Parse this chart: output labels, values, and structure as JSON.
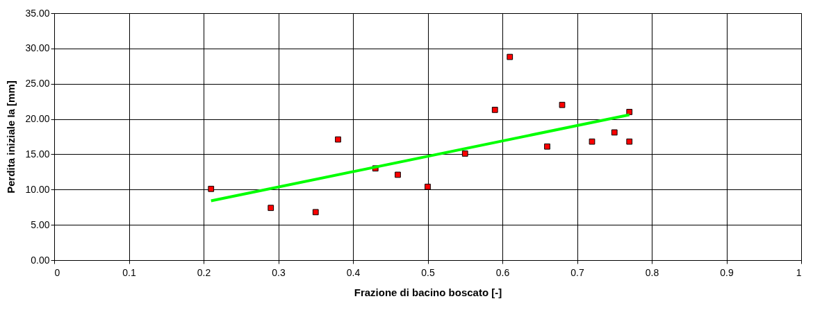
{
  "chart_data": {
    "type": "scatter",
    "xlabel": "Frazione di bacino boscato [-]",
    "ylabel": "Perdita iniziale Ia [mm]",
    "x": [
      0.21,
      0.29,
      0.35,
      0.38,
      0.43,
      0.46,
      0.5,
      0.55,
      0.59,
      0.61,
      0.66,
      0.68,
      0.72,
      0.75,
      0.77,
      0.77
    ],
    "series": [
      {
        "color": "#ff0000",
        "marker": "square",
        "values": [
          10.1,
          7.4,
          6.8,
          17.1,
          13.0,
          12.1,
          10.4,
          15.1,
          21.3,
          28.8,
          16.1,
          22.0,
          16.8,
          18.1,
          21.0,
          16.8
        ]
      },
      {
        "type": "line",
        "color": "#00ff00",
        "marker": "none",
        "x": [
          0.21,
          0.77
        ],
        "values": [
          8.4,
          20.6
        ]
      }
    ],
    "xlim": [
      0,
      1
    ],
    "xticks": [
      0,
      0.1,
      0.2,
      0.3,
      0.4,
      0.5,
      0.6,
      0.7,
      0.8,
      0.9,
      1
    ],
    "ylim": [
      0,
      35
    ],
    "yticks": [
      {
        "value": 0,
        "label": "0.00"
      },
      {
        "value": 5,
        "label": "5.00"
      },
      {
        "value": 10,
        "label": "10.00"
      },
      {
        "value": 15,
        "label": "15.00"
      },
      {
        "value": 20,
        "label": "20.00"
      },
      {
        "value": 25,
        "label": "25.00"
      },
      {
        "value": 30,
        "label": "30.00"
      },
      {
        "value": 35,
        "label": "35.00"
      }
    ],
    "grid": true
  }
}
